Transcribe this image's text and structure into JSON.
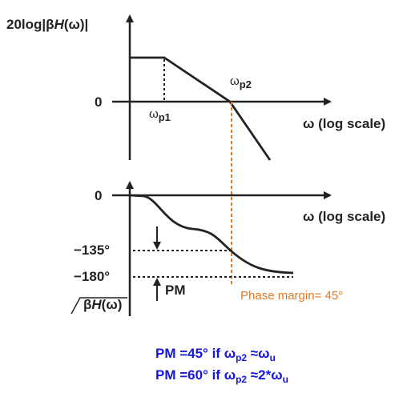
{
  "magnitude_plot": {
    "ylabel_parts": [
      "20log|",
      "β",
      "H",
      "(ω)|"
    ],
    "zero_label": "0",
    "x_label": "ω (log scale)",
    "wp1": {
      "main": "ω",
      "sub": "p1"
    },
    "wp2": {
      "main": "ω",
      "sub": "p2"
    }
  },
  "phase_plot": {
    "zero_label": "0",
    "x_label": "ω (log scale)",
    "tick_135": "−135°",
    "tick_180": "−180°",
    "pm_label": "PM",
    "ylabel_parts": [
      "β",
      "H",
      "(ω)"
    ],
    "phase_margin_note": "Phase margin= 45°"
  },
  "notes": {
    "line1": {
      "a": "PM =45° if ω",
      "sub1": "p2",
      "b": " ≈ω",
      "sub2": "u"
    },
    "line2": {
      "a": "PM =60° if ω",
      "sub1": "p2",
      "b": " ≈2*ω",
      "sub2": "u"
    }
  },
  "colors": {
    "curve": "#222222",
    "note": "#1515e0",
    "margin": "#e87722"
  }
}
